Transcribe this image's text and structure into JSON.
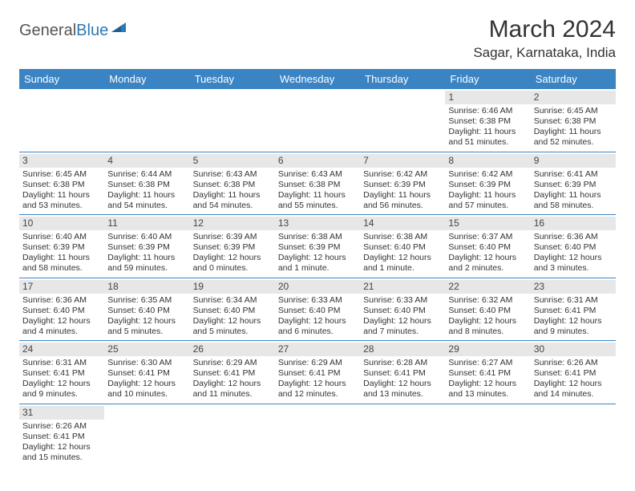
{
  "brand": {
    "general": "General",
    "blue": "Blue"
  },
  "title": "March 2024",
  "location": "Sagar, Karnataka, India",
  "colors": {
    "header_bg": "#3b84c4",
    "header_text": "#ffffff",
    "daynum_bg": "#e7e7e7",
    "row_border": "#3b84c4",
    "text": "#333333",
    "logo_accent": "#2a7ab8"
  },
  "dayHeaders": [
    "Sunday",
    "Monday",
    "Tuesday",
    "Wednesday",
    "Thursday",
    "Friday",
    "Saturday"
  ],
  "weeks": [
    [
      {
        "day": "",
        "lines": []
      },
      {
        "day": "",
        "lines": []
      },
      {
        "day": "",
        "lines": []
      },
      {
        "day": "",
        "lines": []
      },
      {
        "day": "",
        "lines": []
      },
      {
        "day": "1",
        "lines": [
          "Sunrise: 6:46 AM",
          "Sunset: 6:38 PM",
          "Daylight: 11 hours and 51 minutes."
        ]
      },
      {
        "day": "2",
        "lines": [
          "Sunrise: 6:45 AM",
          "Sunset: 6:38 PM",
          "Daylight: 11 hours and 52 minutes."
        ]
      }
    ],
    [
      {
        "day": "3",
        "lines": [
          "Sunrise: 6:45 AM",
          "Sunset: 6:38 PM",
          "Daylight: 11 hours and 53 minutes."
        ]
      },
      {
        "day": "4",
        "lines": [
          "Sunrise: 6:44 AM",
          "Sunset: 6:38 PM",
          "Daylight: 11 hours and 54 minutes."
        ]
      },
      {
        "day": "5",
        "lines": [
          "Sunrise: 6:43 AM",
          "Sunset: 6:38 PM",
          "Daylight: 11 hours and 54 minutes."
        ]
      },
      {
        "day": "6",
        "lines": [
          "Sunrise: 6:43 AM",
          "Sunset: 6:38 PM",
          "Daylight: 11 hours and 55 minutes."
        ]
      },
      {
        "day": "7",
        "lines": [
          "Sunrise: 6:42 AM",
          "Sunset: 6:39 PM",
          "Daylight: 11 hours and 56 minutes."
        ]
      },
      {
        "day": "8",
        "lines": [
          "Sunrise: 6:42 AM",
          "Sunset: 6:39 PM",
          "Daylight: 11 hours and 57 minutes."
        ]
      },
      {
        "day": "9",
        "lines": [
          "Sunrise: 6:41 AM",
          "Sunset: 6:39 PM",
          "Daylight: 11 hours and 58 minutes."
        ]
      }
    ],
    [
      {
        "day": "10",
        "lines": [
          "Sunrise: 6:40 AM",
          "Sunset: 6:39 PM",
          "Daylight: 11 hours and 58 minutes."
        ]
      },
      {
        "day": "11",
        "lines": [
          "Sunrise: 6:40 AM",
          "Sunset: 6:39 PM",
          "Daylight: 11 hours and 59 minutes."
        ]
      },
      {
        "day": "12",
        "lines": [
          "Sunrise: 6:39 AM",
          "Sunset: 6:39 PM",
          "Daylight: 12 hours and 0 minutes."
        ]
      },
      {
        "day": "13",
        "lines": [
          "Sunrise: 6:38 AM",
          "Sunset: 6:39 PM",
          "Daylight: 12 hours and 1 minute."
        ]
      },
      {
        "day": "14",
        "lines": [
          "Sunrise: 6:38 AM",
          "Sunset: 6:40 PM",
          "Daylight: 12 hours and 1 minute."
        ]
      },
      {
        "day": "15",
        "lines": [
          "Sunrise: 6:37 AM",
          "Sunset: 6:40 PM",
          "Daylight: 12 hours and 2 minutes."
        ]
      },
      {
        "day": "16",
        "lines": [
          "Sunrise: 6:36 AM",
          "Sunset: 6:40 PM",
          "Daylight: 12 hours and 3 minutes."
        ]
      }
    ],
    [
      {
        "day": "17",
        "lines": [
          "Sunrise: 6:36 AM",
          "Sunset: 6:40 PM",
          "Daylight: 12 hours and 4 minutes."
        ]
      },
      {
        "day": "18",
        "lines": [
          "Sunrise: 6:35 AM",
          "Sunset: 6:40 PM",
          "Daylight: 12 hours and 5 minutes."
        ]
      },
      {
        "day": "19",
        "lines": [
          "Sunrise: 6:34 AM",
          "Sunset: 6:40 PM",
          "Daylight: 12 hours and 5 minutes."
        ]
      },
      {
        "day": "20",
        "lines": [
          "Sunrise: 6:33 AM",
          "Sunset: 6:40 PM",
          "Daylight: 12 hours and 6 minutes."
        ]
      },
      {
        "day": "21",
        "lines": [
          "Sunrise: 6:33 AM",
          "Sunset: 6:40 PM",
          "Daylight: 12 hours and 7 minutes."
        ]
      },
      {
        "day": "22",
        "lines": [
          "Sunrise: 6:32 AM",
          "Sunset: 6:40 PM",
          "Daylight: 12 hours and 8 minutes."
        ]
      },
      {
        "day": "23",
        "lines": [
          "Sunrise: 6:31 AM",
          "Sunset: 6:41 PM",
          "Daylight: 12 hours and 9 minutes."
        ]
      }
    ],
    [
      {
        "day": "24",
        "lines": [
          "Sunrise: 6:31 AM",
          "Sunset: 6:41 PM",
          "Daylight: 12 hours and 9 minutes."
        ]
      },
      {
        "day": "25",
        "lines": [
          "Sunrise: 6:30 AM",
          "Sunset: 6:41 PM",
          "Daylight: 12 hours and 10 minutes."
        ]
      },
      {
        "day": "26",
        "lines": [
          "Sunrise: 6:29 AM",
          "Sunset: 6:41 PM",
          "Daylight: 12 hours and 11 minutes."
        ]
      },
      {
        "day": "27",
        "lines": [
          "Sunrise: 6:29 AM",
          "Sunset: 6:41 PM",
          "Daylight: 12 hours and 12 minutes."
        ]
      },
      {
        "day": "28",
        "lines": [
          "Sunrise: 6:28 AM",
          "Sunset: 6:41 PM",
          "Daylight: 12 hours and 13 minutes."
        ]
      },
      {
        "day": "29",
        "lines": [
          "Sunrise: 6:27 AM",
          "Sunset: 6:41 PM",
          "Daylight: 12 hours and 13 minutes."
        ]
      },
      {
        "day": "30",
        "lines": [
          "Sunrise: 6:26 AM",
          "Sunset: 6:41 PM",
          "Daylight: 12 hours and 14 minutes."
        ]
      }
    ],
    [
      {
        "day": "31",
        "lines": [
          "Sunrise: 6:26 AM",
          "Sunset: 6:41 PM",
          "Daylight: 12 hours and 15 minutes."
        ]
      },
      {
        "day": "",
        "lines": []
      },
      {
        "day": "",
        "lines": []
      },
      {
        "day": "",
        "lines": []
      },
      {
        "day": "",
        "lines": []
      },
      {
        "day": "",
        "lines": []
      },
      {
        "day": "",
        "lines": []
      }
    ]
  ]
}
